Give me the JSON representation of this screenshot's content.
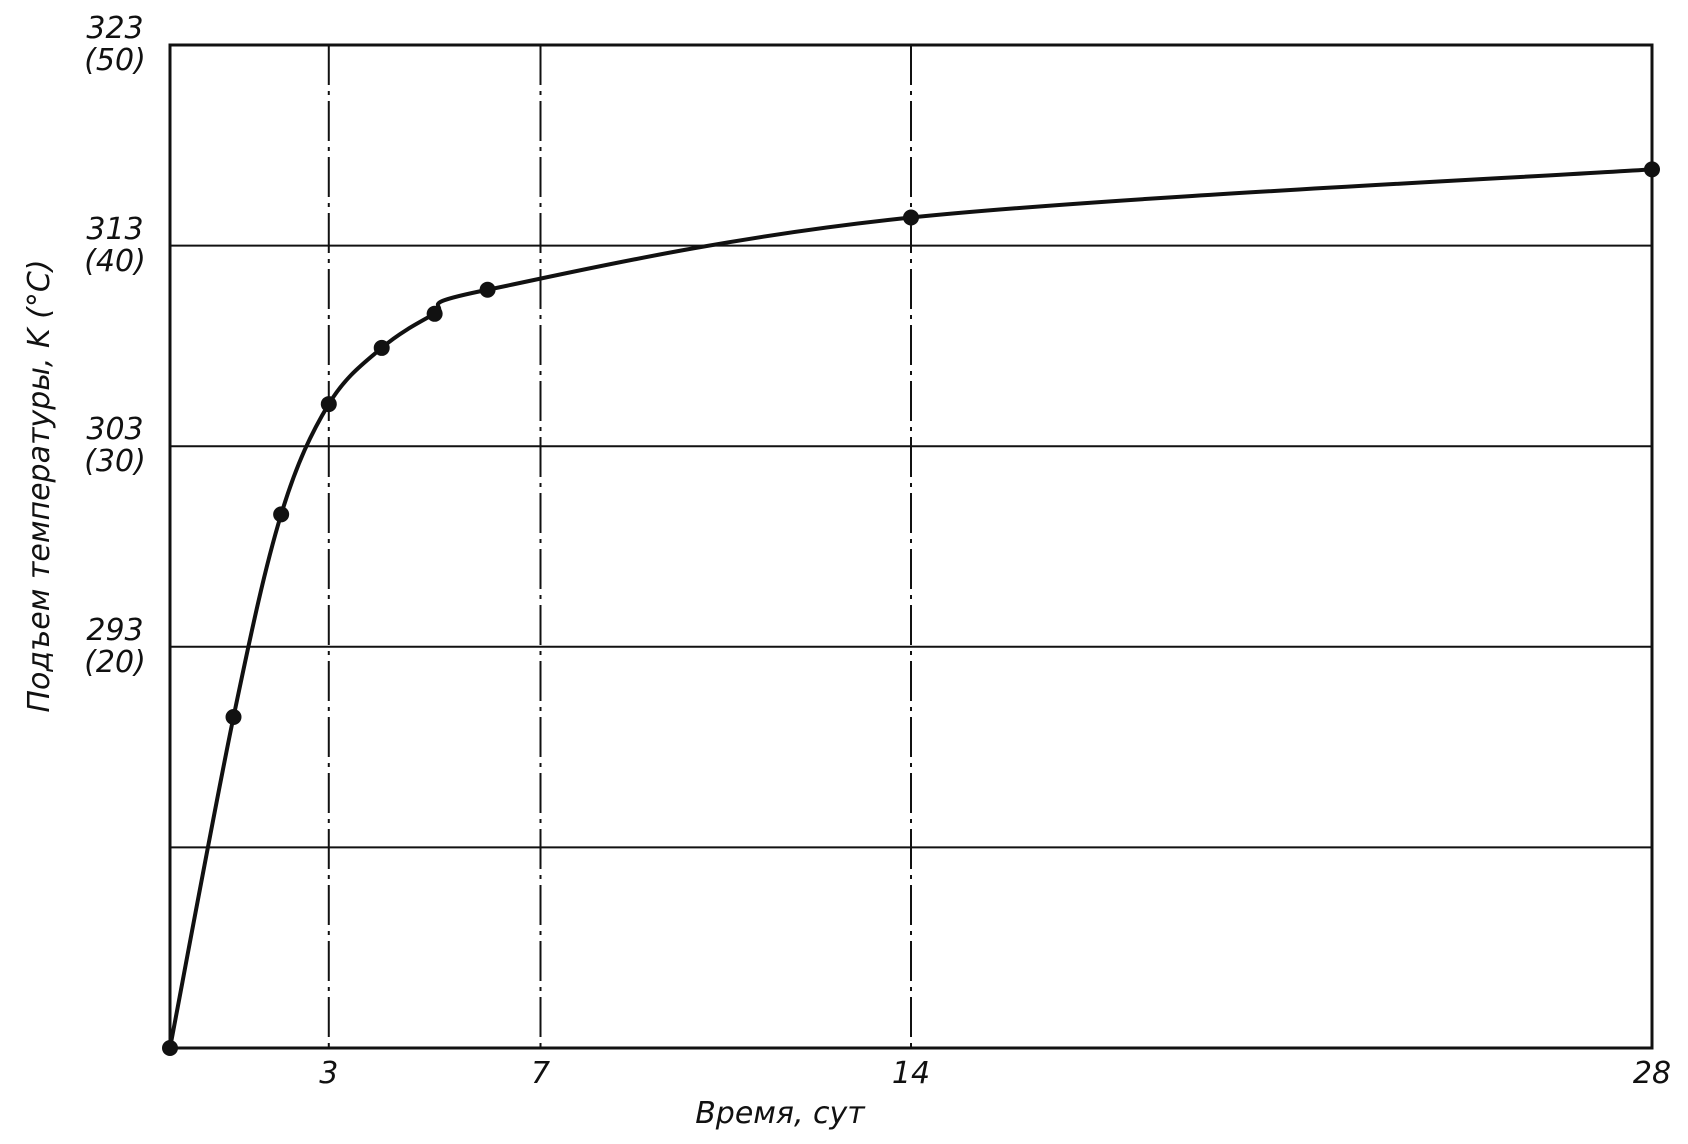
{
  "chart_data": {
    "type": "line",
    "xlabel": "Время, сут",
    "ylabel": "Подъем температуры, K (°C)",
    "x": [
      0,
      1.2,
      2.1,
      3,
      4,
      5,
      6,
      14,
      28
    ],
    "series": [
      {
        "color": "#111111",
        "values": [
          273,
          289.5,
          299.6,
          305.1,
          307.9,
          309.6,
          310.8,
          314.4,
          316.8
        ]
      }
    ],
    "xlim": [
      0,
      28
    ],
    "xticks": [
      3,
      7,
      14,
      28
    ],
    "ylim": [
      273,
      323
    ],
    "yticks": [
      {
        "value": 283,
        "label": null
      },
      {
        "value": 293,
        "label": "293\n(20)"
      },
      {
        "value": 303,
        "label": "303\n(30)"
      },
      {
        "value": 313,
        "label": "313\n(40)"
      },
      {
        "value": 323,
        "label": "323\n(50)"
      }
    ],
    "grid": true
  }
}
